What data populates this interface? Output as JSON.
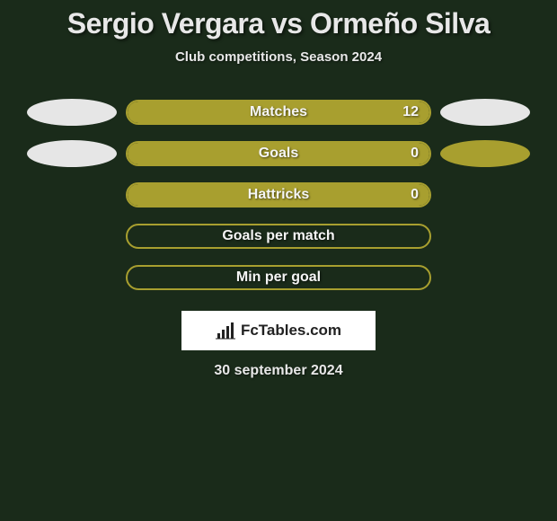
{
  "title": "Sergio Vergara vs Ormeño Silva",
  "subtitle": "Club competitions, Season 2024",
  "date": "30 september 2024",
  "brand": "FcTables.com",
  "colors": {
    "background": "#1a2b1a",
    "bar_olive": "#a89f2f",
    "ellipse_light": "#e6e6e6",
    "ellipse_olive": "#a89f2f",
    "bar_border_olive": "#a89f2f",
    "text": "#e8e8e8"
  },
  "rows": [
    {
      "label": "Matches",
      "left_value": "",
      "right_value": "12",
      "left_fill_pct": 0,
      "right_fill_pct": 100,
      "fill_color": "#a89f2f",
      "border_color": "#a89f2f",
      "left_ellipse_color": "#e6e6e6",
      "right_ellipse_color": "#e6e6e6",
      "show_left_ellipse": true,
      "show_right_ellipse": true
    },
    {
      "label": "Goals",
      "left_value": "",
      "right_value": "0",
      "left_fill_pct": 0,
      "right_fill_pct": 100,
      "fill_color": "#a89f2f",
      "border_color": "#a89f2f",
      "left_ellipse_color": "#e6e6e6",
      "right_ellipse_color": "#a89f2f",
      "show_left_ellipse": true,
      "show_right_ellipse": true
    },
    {
      "label": "Hattricks",
      "left_value": "",
      "right_value": "0",
      "left_fill_pct": 0,
      "right_fill_pct": 100,
      "fill_color": "#a89f2f",
      "border_color": "#a89f2f",
      "left_ellipse_color": null,
      "right_ellipse_color": null,
      "show_left_ellipse": false,
      "show_right_ellipse": false
    },
    {
      "label": "Goals per match",
      "left_value": "",
      "right_value": "",
      "left_fill_pct": 0,
      "right_fill_pct": 0,
      "fill_color": "#a89f2f",
      "border_color": "#a89f2f",
      "left_ellipse_color": null,
      "right_ellipse_color": null,
      "show_left_ellipse": false,
      "show_right_ellipse": false
    },
    {
      "label": "Min per goal",
      "left_value": "",
      "right_value": "",
      "left_fill_pct": 0,
      "right_fill_pct": 0,
      "fill_color": "#a89f2f",
      "border_color": "#a89f2f",
      "left_ellipse_color": null,
      "right_ellipse_color": null,
      "show_left_ellipse": false,
      "show_right_ellipse": false
    }
  ]
}
